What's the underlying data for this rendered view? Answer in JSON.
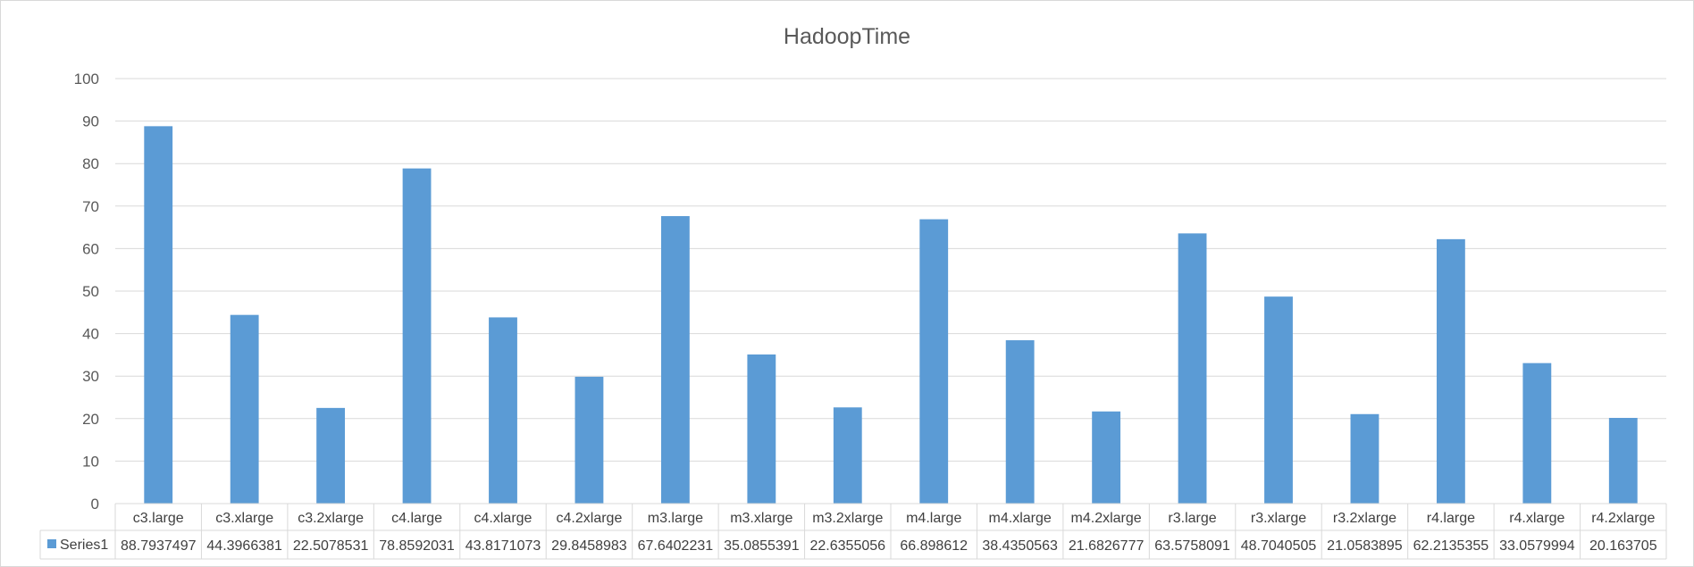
{
  "chart_data": {
    "type": "bar",
    "title": "HadoopTime",
    "xlabel": "",
    "ylabel": "",
    "ylim": [
      0,
      100
    ],
    "yticks": [
      0,
      10,
      20,
      30,
      40,
      50,
      60,
      70,
      80,
      90,
      100
    ],
    "grid": true,
    "legend": "data-table",
    "categories": [
      "c3.large",
      "c3.xlarge",
      "c3.2xlarge",
      "c4.large",
      "c4.xlarge",
      "c4.2xlarge",
      "m3.large",
      "m3.xlarge",
      "m3.2xlarge",
      "m4.large",
      "m4.xlarge",
      "m4.2xlarge",
      "r3.large",
      "r3.xlarge",
      "r3.2xlarge",
      "r4.large",
      "r4.xlarge",
      "r4.2xlarge"
    ],
    "series": [
      {
        "name": "Series1",
        "color": "#5b9bd5",
        "values": [
          88.7937497,
          44.3966381,
          22.5078531,
          78.8592031,
          43.8171073,
          29.8458983,
          67.6402231,
          35.0855391,
          22.6355056,
          66.898612,
          38.4350563,
          21.6826777,
          63.5758091,
          48.7040505,
          21.0583895,
          62.2135355,
          33.0579994,
          20.163705
        ]
      }
    ]
  }
}
